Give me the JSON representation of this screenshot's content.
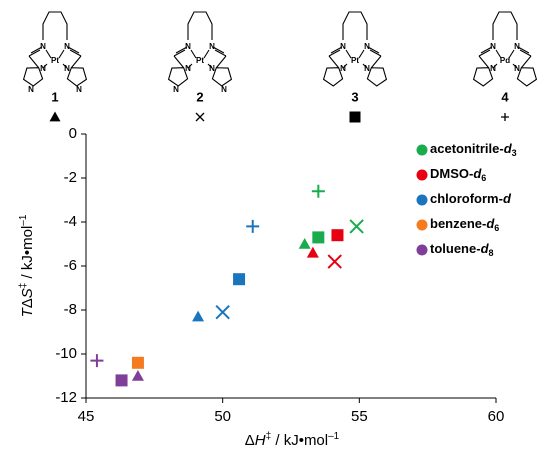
{
  "compounds": [
    {
      "label": "1",
      "metal": "Pt",
      "nitrogen": "N",
      "ring": "imidazole",
      "marker": "triangle"
    },
    {
      "label": "2",
      "metal": "Pt",
      "nitrogen": "N",
      "ring": "imidazole",
      "marker": "x"
    },
    {
      "label": "3",
      "metal": "Pt",
      "nitrogen": "N",
      "ring": "pyrrole",
      "marker": "square"
    },
    {
      "label": "4",
      "metal": "Pd",
      "nitrogen": "N",
      "ring": "pyrrole",
      "marker": "plus"
    }
  ],
  "chart_data": {
    "type": "scatter",
    "xlabel": [
      "Δ",
      "H",
      "‡",
      " / kJ•mol",
      "–1"
    ],
    "ylabel": [
      "T",
      "Δ",
      "S",
      "‡",
      " / kJ•mol",
      "–1"
    ],
    "xlim": [
      45,
      60
    ],
    "xticks": [
      45,
      50,
      55,
      60
    ],
    "ylim": [
      -12,
      0
    ],
    "yticks": [
      0,
      -2,
      -4,
      -6,
      -8,
      -10,
      -12
    ],
    "series": [
      {
        "name": [
          "acetonitrile-",
          "d",
          "3"
        ],
        "color": "#1aab4e",
        "x": [
          53.0,
          53.5,
          54.9,
          53.5
        ],
        "y": [
          -5.0,
          -4.7,
          -4.2,
          -2.6
        ],
        "markers": [
          "triangle",
          "square",
          "x",
          "plus"
        ]
      },
      {
        "name": [
          "DMSO-",
          "d",
          "6"
        ],
        "color": "#e60012",
        "x": [
          53.3,
          54.2,
          54.1
        ],
        "y": [
          -5.4,
          -4.6,
          -5.8
        ],
        "markers": [
          "triangle",
          "square",
          "x"
        ]
      },
      {
        "name": [
          "chloroform-",
          "d"
        ],
        "color": "#1a75bc",
        "x": [
          49.1,
          50.0,
          50.6,
          51.1
        ],
        "y": [
          -8.3,
          -8.1,
          -6.6,
          -4.2
        ],
        "markers": [
          "triangle",
          "x",
          "square",
          "plus"
        ]
      },
      {
        "name": [
          "benzene-",
          "d",
          "6"
        ],
        "color": "#f47b20",
        "x": [
          46.9
        ],
        "y": [
          -10.4
        ],
        "markers": [
          "square"
        ]
      },
      {
        "name": [
          "toluene-",
          "d",
          "8"
        ],
        "color": "#7f3f98",
        "x": [
          46.9,
          46.3,
          45.4
        ],
        "y": [
          -11.0,
          -11.2,
          -10.3
        ],
        "markers": [
          "triangle",
          "square",
          "plus"
        ]
      }
    ]
  }
}
